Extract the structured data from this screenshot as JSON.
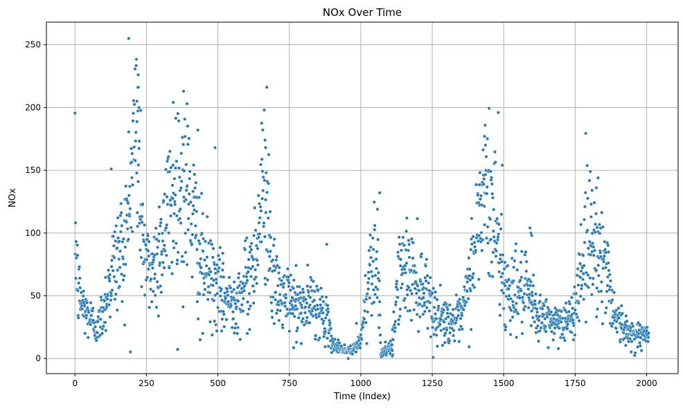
{
  "chart_data": {
    "type": "scatter",
    "title": "NOx Over Time",
    "xlabel": "Time (Index)",
    "ylabel": "NOx",
    "xlim": [
      -100,
      2110
    ],
    "ylim": [
      -12,
      268
    ],
    "xticks": [
      0,
      250,
      500,
      750,
      1000,
      1250,
      1500,
      1750,
      2000
    ],
    "yticks": [
      0,
      50,
      100,
      150,
      200,
      250
    ],
    "grid": true,
    "legend": "none",
    "color": "#1f77b4",
    "n_points": 2008,
    "anchors": [
      [
        0,
        110
      ],
      [
        10,
        55
      ],
      [
        30,
        40
      ],
      [
        60,
        30
      ],
      [
        80,
        25
      ],
      [
        100,
        40
      ],
      [
        130,
        70
      ],
      [
        160,
        85
      ],
      [
        180,
        100
      ],
      [
        200,
        150
      ],
      [
        215,
        190
      ],
      [
        230,
        120
      ],
      [
        250,
        70
      ],
      [
        280,
        75
      ],
      [
        320,
        110
      ],
      [
        360,
        140
      ],
      [
        400,
        125
      ],
      [
        440,
        80
      ],
      [
        470,
        65
      ],
      [
        500,
        55
      ],
      [
        540,
        45
      ],
      [
        580,
        52
      ],
      [
        620,
        70
      ],
      [
        650,
        120
      ],
      [
        670,
        150
      ],
      [
        690,
        60
      ],
      [
        720,
        50
      ],
      [
        760,
        45
      ],
      [
        800,
        40
      ],
      [
        840,
        45
      ],
      [
        880,
        30
      ],
      [
        900,
        12
      ],
      [
        940,
        7
      ],
      [
        970,
        6
      ],
      [
        1000,
        15
      ],
      [
        1020,
        50
      ],
      [
        1040,
        85
      ],
      [
        1060,
        80
      ],
      [
        1070,
        5
      ],
      [
        1100,
        8
      ],
      [
        1110,
        10
      ],
      [
        1130,
        65
      ],
      [
        1160,
        72
      ],
      [
        1200,
        60
      ],
      [
        1240,
        55
      ],
      [
        1250,
        35
      ],
      [
        1300,
        30
      ],
      [
        1350,
        30
      ],
      [
        1380,
        60
      ],
      [
        1400,
        95
      ],
      [
        1430,
        130
      ],
      [
        1460,
        120
      ],
      [
        1490,
        80
      ],
      [
        1500,
        55
      ],
      [
        1540,
        55
      ],
      [
        1580,
        50
      ],
      [
        1620,
        35
      ],
      [
        1660,
        30
      ],
      [
        1700,
        30
      ],
      [
        1740,
        30
      ],
      [
        1760,
        60
      ],
      [
        1790,
        95
      ],
      [
        1820,
        90
      ],
      [
        1860,
        70
      ],
      [
        1880,
        45
      ],
      [
        1900,
        30
      ],
      [
        1930,
        20
      ],
      [
        1960,
        20
      ],
      [
        2000,
        18
      ],
      [
        2007,
        18
      ]
    ],
    "outliers": [
      [
        188,
        255
      ],
      [
        221,
        226
      ],
      [
        220,
        216
      ],
      [
        217,
        205
      ],
      [
        224,
        200
      ],
      [
        380,
        213
      ],
      [
        344,
        204
      ],
      [
        392,
        203
      ],
      [
        430,
        182
      ],
      [
        1481,
        196
      ],
      [
        1433,
        177
      ],
      [
        1495,
        154
      ],
      [
        1436,
        170
      ],
      [
        1803,
        149
      ],
      [
        665,
        174
      ],
      [
        667,
        168
      ],
      [
        490,
        168
      ],
      [
        127,
        151
      ],
      [
        1066,
        132
      ],
      [
        1830,
        144
      ],
      [
        1824,
        136
      ],
      [
        1809,
        134
      ],
      [
        1806,
        123
      ],
      [
        1592,
        104
      ],
      [
        1595,
        100
      ],
      [
        1598,
        98
      ],
      [
        438,
        15
      ],
      [
        447,
        20
      ],
      [
        513,
        22
      ],
      [
        603,
        20
      ],
      [
        775,
        13
      ],
      [
        792,
        12
      ],
      [
        881,
        91
      ],
      [
        1112,
        3
      ],
      [
        1110,
        2
      ],
      [
        1103,
        4
      ],
      [
        956,
        0
      ],
      [
        985,
        28
      ],
      [
        1111,
        23
      ],
      [
        1261,
        53
      ],
      [
        1291,
        43
      ]
    ]
  }
}
